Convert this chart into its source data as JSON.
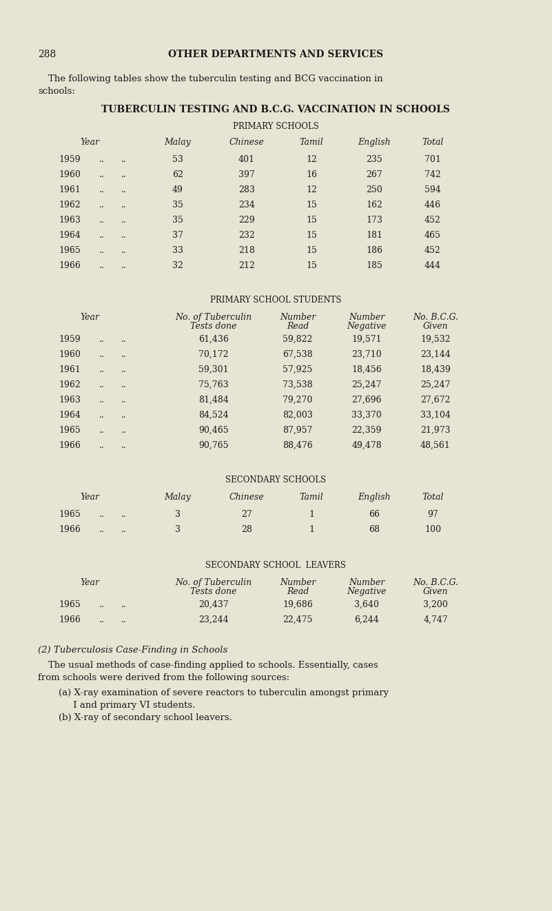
{
  "bg_color": "#e8e4d4",
  "text_color": "#1a1a1a",
  "page_number": "288",
  "page_header": "OTHER DEPARTMENTS AND SERVICES",
  "intro_line1": "The following tables show the tuberculin testing and BCG vaccination in",
  "intro_line2": "schools:",
  "main_title": "TUBERCULIN TESTING AND B.C.G. VACCINATION IN SCHOOLS",
  "section1_title": "PRIMARY SCHOOLS",
  "section1_headers": [
    "Year",
    "Malay",
    "Chinese",
    "Tamil",
    "English",
    "Total"
  ],
  "section1_data": [
    [
      "1959",
      "..",
      "..",
      "53",
      "401",
      "12",
      "235",
      "701"
    ],
    [
      "1960",
      "..",
      "..",
      "62",
      "397",
      "16",
      "267",
      "742"
    ],
    [
      "1961",
      "..",
      "..",
      "49",
      "283",
      "12",
      "250",
      "594"
    ],
    [
      "1962",
      "..",
      "..",
      "35",
      "234",
      "15",
      "162",
      "446"
    ],
    [
      "1963",
      "..",
      "..",
      "35",
      "229",
      "15",
      "173",
      "452"
    ],
    [
      "1964",
      "..",
      "..",
      "37",
      "232",
      "15",
      "181",
      "465"
    ],
    [
      "1965",
      "..",
      "..",
      "33",
      "218",
      "15",
      "186",
      "452"
    ],
    [
      "1966",
      "..",
      "..",
      "32",
      "212",
      "15",
      "185",
      "444"
    ]
  ],
  "section2_title": "PRIMARY SCHOOL STUDENTS",
  "section2_h1": [
    "Year",
    "No. of Tuberculin",
    "Number",
    "Number",
    "No. B.C.G."
  ],
  "section2_h2": [
    "",
    "Tests done",
    "Read",
    "Negative",
    "Given"
  ],
  "section2_data": [
    [
      "1959",
      "..",
      "..",
      "61,436",
      "59,822",
      "19,571",
      "19,532"
    ],
    [
      "1960",
      "..",
      "..",
      "70,172",
      "67,538",
      "23,710",
      "23,144"
    ],
    [
      "1961",
      "..",
      "..",
      "59,301",
      "57,925",
      "18,456",
      "18,439"
    ],
    [
      "1962",
      "..",
      "..",
      "75,763",
      "73,538",
      "25,247",
      "25,247"
    ],
    [
      "1963",
      "..",
      "..",
      "81,484",
      "79,270",
      "27,696",
      "27,672"
    ],
    [
      "1964",
      "..",
      "..",
      "84,524",
      "82,003",
      "33,370",
      "33,104"
    ],
    [
      "1965",
      "..",
      "..",
      "90,465",
      "87,957",
      "22,359",
      "21,973"
    ],
    [
      "1966",
      "..",
      "..",
      "90,765",
      "88,476",
      "49,478",
      "48,561"
    ]
  ],
  "section3_title": "SECONDARY SCHOOLS",
  "section3_headers": [
    "Year",
    "Malay",
    "Chinese",
    "Tamil",
    "English",
    "Total"
  ],
  "section3_data": [
    [
      "1965",
      "..",
      "..",
      "3",
      "27",
      "1",
      "66",
      "97"
    ],
    [
      "1966",
      "..",
      "..",
      "3",
      "28",
      "1",
      "68",
      "100"
    ]
  ],
  "section4_title": "SECONDARY SCHOOL  LEAVERS",
  "section4_h1": [
    "Year",
    "No. of Tuberculin",
    "Number",
    "Number",
    "No. B.C.G."
  ],
  "section4_h2": [
    "",
    "Tests done",
    "Read",
    "Negative",
    "Given"
  ],
  "section4_data": [
    [
      "1965",
      "..",
      "..",
      "20,437",
      "19,686",
      "3,640",
      "3,200"
    ],
    [
      "1966",
      "..",
      "..",
      "23,244",
      "22,475",
      "6,244",
      "4,747"
    ]
  ],
  "footnote_title": "(2) Tuberculosis Case-Finding in Schools",
  "footnote_body1": "The usual methods of case-finding applied to schools. Essentially, cases",
  "footnote_body2": "from schools were derived from the following sources:",
  "footnote_a1": "(a) X-ray examination of severe reactors to tuberculin amongst primary",
  "footnote_a2": "     I and primary VI students.",
  "footnote_b": "(b) X-ray of secondary school leavers."
}
